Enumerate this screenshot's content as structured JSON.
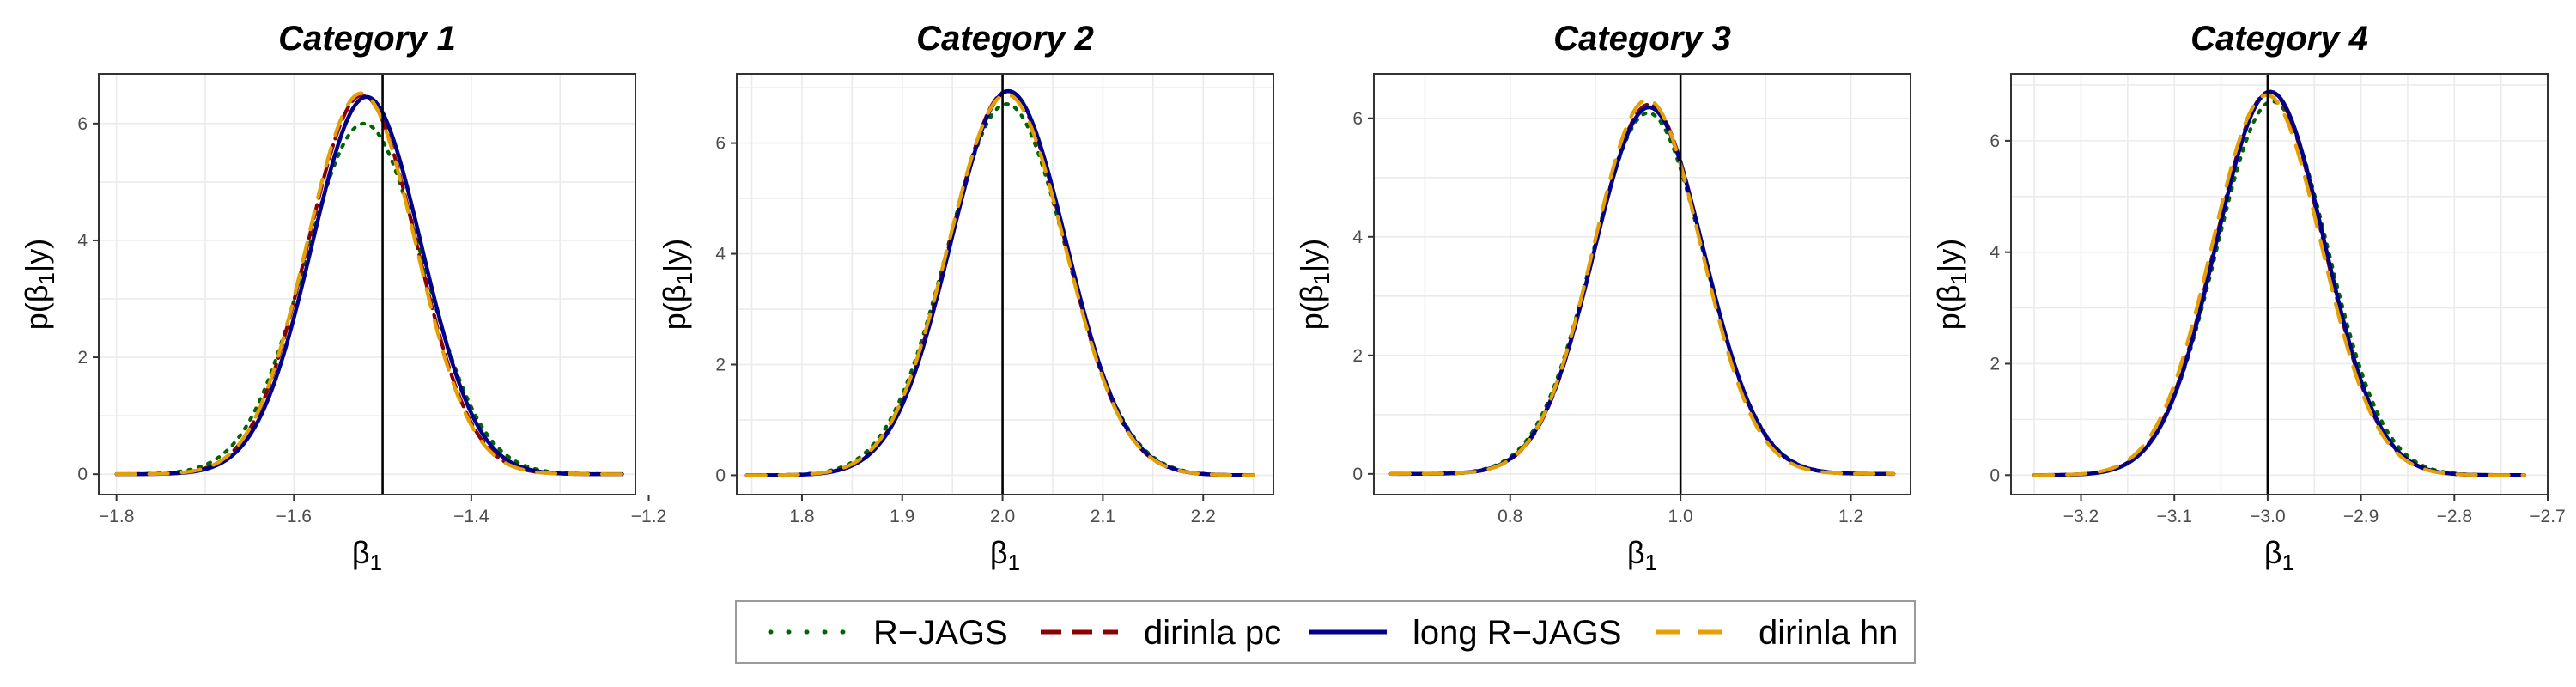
{
  "chart_data": [
    {
      "type": "line",
      "title": "Category 1",
      "xlabel": "β1",
      "ylabel": "p(β1|y)",
      "xlim": [
        -1.82,
        -1.215
      ],
      "ylim": [
        -0.35,
        6.85
      ],
      "xticks": [
        -1.8,
        -1.6,
        -1.4,
        -1.2
      ],
      "xtick_labels": [
        "−1.8",
        "−1.6",
        "−1.4",
        "−1.2"
      ],
      "yticks": [
        0,
        2,
        4,
        6
      ],
      "ytick_labels": [
        "0",
        "2",
        "4",
        "6"
      ],
      "vline": -1.5,
      "x_range": [
        -1.8,
        -1.23
      ],
      "series": [
        {
          "name": "R−JAGS",
          "mean": -1.521,
          "sd": 0.0665
        },
        {
          "name": "dirinla pc",
          "mean": -1.523,
          "sd": 0.0615
        },
        {
          "name": "long R−JAGS",
          "mean": -1.518,
          "sd": 0.0618
        },
        {
          "name": "dirinla hn",
          "mean": -1.524,
          "sd": 0.0612
        }
      ]
    },
    {
      "type": "line",
      "title": "Category 2",
      "xlabel": "β1",
      "ylabel": "p(β1|y)",
      "xlim": [
        1.735,
        2.27
      ],
      "ylim": [
        -0.35,
        7.25
      ],
      "xticks": [
        1.8,
        1.9,
        2.0,
        2.1,
        2.2
      ],
      "xtick_labels": [
        "1.8",
        "1.9",
        "2.0",
        "2.1",
        "2.2"
      ],
      "yticks": [
        0,
        2,
        4,
        6
      ],
      "ytick_labels": [
        "0",
        "2",
        "4",
        "6"
      ],
      "vline": 2.0,
      "x_range": [
        1.745,
        2.25
      ],
      "series": [
        {
          "name": "R−JAGS",
          "mean": 2.004,
          "sd": 0.0595
        },
        {
          "name": "dirinla pc",
          "mean": 2.005,
          "sd": 0.0575
        },
        {
          "name": "long R−JAGS",
          "mean": 2.006,
          "sd": 0.0575
        },
        {
          "name": "dirinla hn",
          "mean": 2.004,
          "sd": 0.058
        }
      ]
    },
    {
      "type": "line",
      "title": "Category 3",
      "xlabel": "β1",
      "ylabel": "p(β1|y)",
      "xlim": [
        0.64,
        1.27
      ],
      "ylim": [
        -0.35,
        6.75
      ],
      "xticks": [
        0.8,
        1.0,
        1.2
      ],
      "xtick_labels": [
        "0.8",
        "1.0",
        "1.2"
      ],
      "yticks": [
        0,
        2,
        4,
        6
      ],
      "ytick_labels": [
        "0",
        "2",
        "4",
        "6"
      ],
      "vline": 1.0,
      "x_range": [
        0.66,
        1.25
      ],
      "series": [
        {
          "name": "R−JAGS",
          "mean": 0.962,
          "sd": 0.0655
        },
        {
          "name": "dirinla pc",
          "mean": 0.963,
          "sd": 0.064
        },
        {
          "name": "long R−JAGS",
          "mean": 0.963,
          "sd": 0.0645
        },
        {
          "name": "dirinla hn",
          "mean": 0.961,
          "sd": 0.0632
        }
      ]
    },
    {
      "type": "line",
      "title": "Category 4",
      "xlabel": "β1",
      "ylabel": "p(β1|y)",
      "xlim": [
        -3.275,
        -2.7
      ],
      "ylim": [
        -0.35,
        7.2
      ],
      "xticks": [
        -3.2,
        -3.1,
        -3.0,
        -2.9,
        -2.8,
        -2.7
      ],
      "xtick_labels": [
        "−3.2",
        "−3.1",
        "−3.0",
        "−2.9",
        "−2.8",
        "−2.7"
      ],
      "yticks": [
        0,
        2,
        4,
        6
      ],
      "ytick_labels": [
        "0",
        "2",
        "4",
        "6"
      ],
      "vline": -3.0,
      "x_range": [
        -3.25,
        -2.725
      ],
      "series": [
        {
          "name": "R−JAGS",
          "mean": -2.995,
          "sd": 0.0595
        },
        {
          "name": "dirinla pc",
          "mean": -2.998,
          "sd": 0.058
        },
        {
          "name": "long R−JAGS",
          "mean": -2.997,
          "sd": 0.058
        },
        {
          "name": "dirinla hn",
          "mean": -3.001,
          "sd": 0.0585
        }
      ]
    }
  ],
  "legend": {
    "placement": "bottom",
    "items": [
      {
        "label": "R−JAGS",
        "color": "#006400",
        "dash": "dotted"
      },
      {
        "label": "dirinla pc",
        "color": "#8b0000",
        "dash": "dashed"
      },
      {
        "label": "long R−JAGS",
        "color": "#00008b",
        "dash": "solid"
      },
      {
        "label": "dirinla hn",
        "color": "#e69f00",
        "dash": "longdash"
      }
    ]
  },
  "style": {
    "grid": true,
    "grid_color": "#ebebeb",
    "frame_color": "#333333",
    "vline_color": "#000000"
  }
}
